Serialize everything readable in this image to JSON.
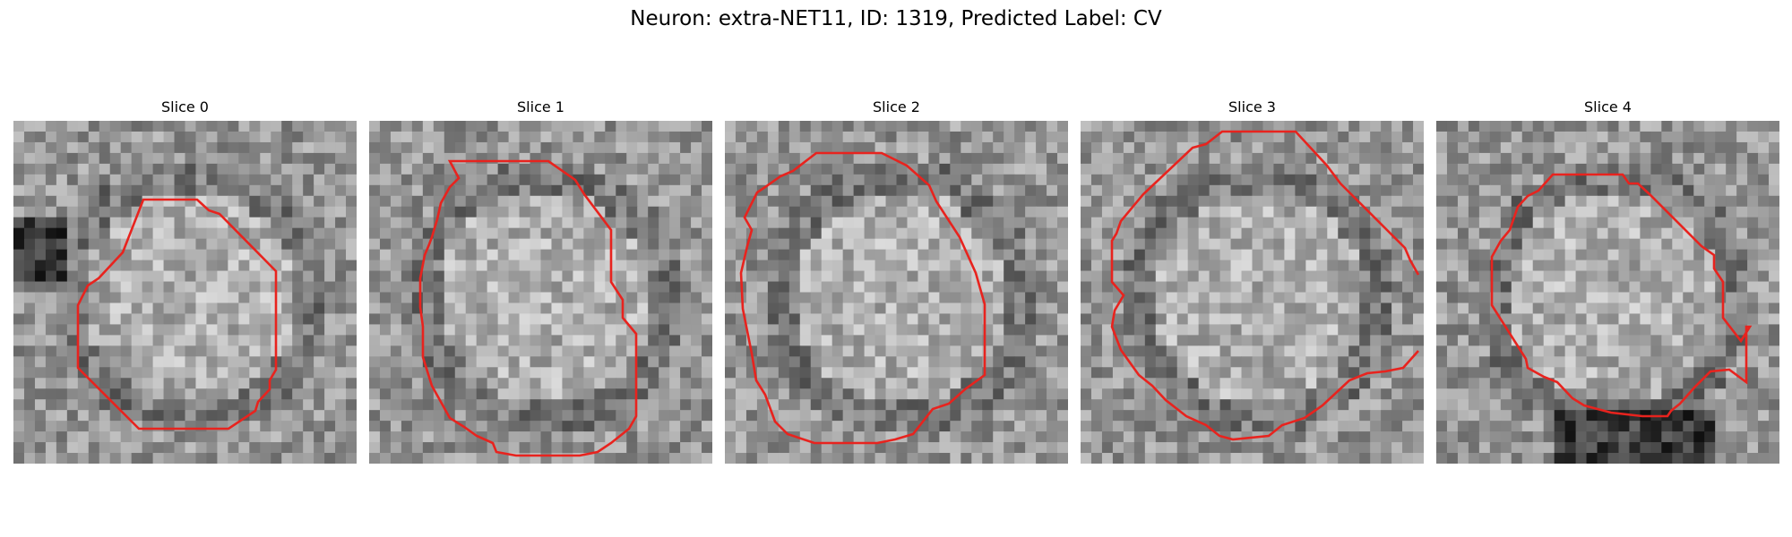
{
  "figure": {
    "title": "Neuron: extra-NET11, ID: 1319, Predicted Label: CV"
  },
  "panels": [
    {
      "title": "Slice 0"
    },
    {
      "title": "Slice 1"
    },
    {
      "title": "Slice 2"
    },
    {
      "title": "Slice 3"
    },
    {
      "title": "Slice 4"
    }
  ],
  "colors": {
    "contour": "#e8231e",
    "background": "#ffffff"
  }
}
